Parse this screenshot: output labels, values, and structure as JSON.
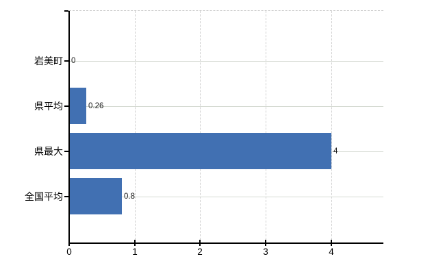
{
  "chart_data": {
    "type": "bar",
    "orientation": "horizontal",
    "title": "",
    "xlabel": "",
    "ylabel": "",
    "categories": [
      "岩美町",
      "県平均",
      "県最大",
      "全国平均"
    ],
    "values": [
      0,
      0.26,
      4,
      0.8
    ],
    "value_labels": [
      "0",
      "0.26",
      "4",
      "0.8"
    ],
    "x_ticks": [
      0,
      1,
      2,
      3,
      4
    ],
    "x_tick_labels": [
      "0",
      "1",
      "2",
      "3",
      "4"
    ],
    "xlim": [
      0,
      4.8
    ],
    "grid": true,
    "legend": false,
    "colors": {
      "bar": "#4170b2",
      "h_gridline": "#d5dad2",
      "v_gridline": "#cfcfcf",
      "axis": "#000000",
      "text": "#000000",
      "background": "#ffffff"
    }
  }
}
